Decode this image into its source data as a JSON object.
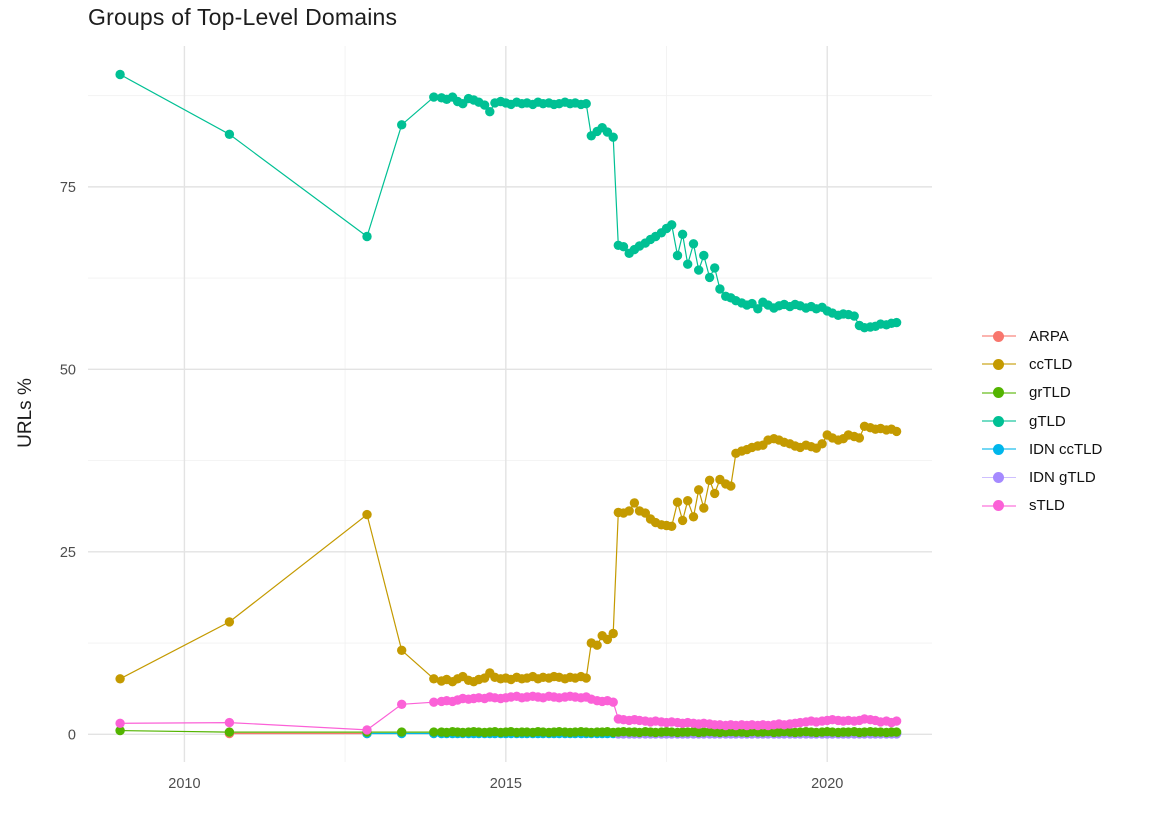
{
  "chart_data": {
    "type": "line",
    "title": "Groups of Top-Level Domains",
    "ylabel": "URLs %",
    "xlabel": "",
    "legend_position": "right",
    "grid": true,
    "axis": {
      "xlim": [
        2008.5,
        2021.63
      ],
      "ylim": [
        -3.8,
        94.3
      ],
      "x_ticks": [
        2010,
        2015,
        2020
      ],
      "x_minor_ticks": [
        2012.5,
        2017.5
      ],
      "y_ticks": [
        0,
        25,
        50,
        75
      ],
      "y_minor_ticks": [
        12.5,
        37.5,
        62.5,
        87.5
      ]
    },
    "colors": {
      "grid_major": "#e3e3e3",
      "grid_minor": "#f2f2f2",
      "tick_text": "#4d4d4d",
      "title_text": "#1d1d1d"
    },
    "x_monthly": [
      2014,
      2014.08,
      2014.17,
      2014.25,
      2014.33,
      2014.42,
      2014.5,
      2014.58,
      2014.67,
      2014.75,
      2014.83,
      2014.92,
      2015,
      2015.08,
      2015.17,
      2015.25,
      2015.33,
      2015.42,
      2015.5,
      2015.58,
      2015.67,
      2015.75,
      2015.83,
      2015.92,
      2016,
      2016.08,
      2016.17,
      2016.25,
      2016.33,
      2016.42,
      2016.5,
      2016.58,
      2016.67,
      2016.75,
      2016.83,
      2016.92,
      2017,
      2017.08,
      2017.17,
      2017.25,
      2017.33,
      2017.42,
      2017.5,
      2017.58,
      2017.67,
      2017.75,
      2017.83,
      2017.92,
      2018,
      2018.08,
      2018.17,
      2018.25,
      2018.33,
      2018.42,
      2018.5,
      2018.58,
      2018.67,
      2018.75,
      2018.83,
      2018.92,
      2019,
      2019.08,
      2019.17,
      2019.25,
      2019.33,
      2019.42,
      2019.5,
      2019.58,
      2019.67,
      2019.75,
      2019.83,
      2019.92,
      2020,
      2020.08,
      2020.17,
      2020.25,
      2020.33,
      2020.42,
      2020.5,
      2020.58,
      2020.67,
      2020.75,
      2020.83,
      2020.92,
      2021,
      2021.08
    ],
    "series": [
      {
        "name": "ARPA",
        "color": "#F8766D",
        "z": 1,
        "x_pre": [
          2010.7,
          2012.84
        ],
        "y_pre": [
          0.1,
          0.1
        ],
        "monthly_start": 0,
        "y_monthly": []
      },
      {
        "name": "ccTLD",
        "color": "#C49A00",
        "z": 4,
        "x_pre": [
          2009.0,
          2010.7,
          2012.84,
          2013.38,
          2013.88
        ],
        "y_pre": [
          7.6,
          15.4,
          30.1,
          11.5,
          7.6
        ],
        "monthly_start": 0,
        "y_monthly": [
          7.3,
          7.5,
          7.2,
          7.6,
          7.9,
          7.4,
          7.2,
          7.5,
          7.7,
          8.4,
          7.8,
          7.6,
          7.7,
          7.5,
          7.8,
          7.6,
          7.7,
          7.9,
          7.6,
          7.8,
          7.7,
          7.9,
          7.8,
          7.6,
          7.8,
          7.7,
          7.9,
          7.7,
          12.5,
          12.2,
          13.5,
          13.0,
          13.8,
          30.4,
          30.3,
          30.6,
          31.7,
          30.6,
          30.3,
          29.5,
          29.0,
          28.7,
          28.6,
          28.5,
          31.8,
          29.3,
          32.0,
          29.8,
          33.5,
          31.0,
          34.8,
          33.0,
          34.9,
          34.3,
          34.0,
          38.5,
          38.8,
          39.0,
          39.3,
          39.5,
          39.6,
          40.3,
          40.5,
          40.3,
          40.0,
          39.8,
          39.5,
          39.3,
          39.6,
          39.4,
          39.2,
          39.8,
          41.0,
          40.6,
          40.3,
          40.5,
          41.0,
          40.8,
          40.6,
          42.2,
          42.0,
          41.8,
          41.9,
          41.7,
          41.8,
          41.5
        ]
      },
      {
        "name": "grTLD",
        "color": "#53B400",
        "z": 6,
        "x_pre": [
          2009.0,
          2010.7,
          2012.84,
          2013.38,
          2013.88
        ],
        "y_pre": [
          0.5,
          0.3,
          0.3,
          0.3,
          0.3
        ],
        "monthly_start": 0,
        "y_monthly": [
          0.3,
          0.25,
          0.35,
          0.3,
          0.25,
          0.3,
          0.35,
          0.3,
          0.25,
          0.3,
          0.35,
          0.25,
          0.3,
          0.35,
          0.25,
          0.3,
          0.3,
          0.25,
          0.35,
          0.3,
          0.25,
          0.3,
          0.35,
          0.3,
          0.25,
          0.3,
          0.35,
          0.3,
          0.25,
          0.3,
          0.3,
          0.35,
          0.25,
          0.3,
          0.35,
          0.3,
          0.3,
          0.25,
          0.35,
          0.3,
          0.25,
          0.3,
          0.35,
          0.3,
          0.25,
          0.3,
          0.3,
          0.35,
          0.25,
          0.3,
          0.35,
          0.3,
          0.25,
          0.3,
          0.35,
          0.3,
          0.3,
          0.25,
          0.35,
          0.3,
          0.3,
          0.35,
          0.25,
          0.3,
          0.35,
          0.3,
          0.25,
          0.3,
          0.35,
          0.3,
          0.25,
          0.3,
          0.35,
          0.3,
          0.25,
          0.3,
          0.3,
          0.35,
          0.25,
          0.3,
          0.35,
          0.3,
          0.3,
          0.25,
          0.3,
          0.3
        ]
      },
      {
        "name": "gTLD",
        "color": "#00C094",
        "z": 5,
        "x_pre": [
          2009.0,
          2010.7,
          2012.84,
          2013.38,
          2013.88
        ],
        "y_pre": [
          90.4,
          82.2,
          68.2,
          83.5,
          87.3
        ],
        "monthly_start": 0,
        "y_monthly": [
          87.2,
          87.0,
          87.3,
          86.7,
          86.4,
          87.1,
          86.9,
          86.6,
          86.2,
          85.3,
          86.5,
          86.7,
          86.5,
          86.3,
          86.6,
          86.4,
          86.5,
          86.3,
          86.6,
          86.4,
          86.5,
          86.3,
          86.4,
          86.6,
          86.4,
          86.5,
          86.3,
          86.4,
          82.0,
          82.6,
          83.1,
          82.5,
          81.8,
          67.0,
          66.8,
          65.9,
          66.4,
          66.9,
          67.3,
          67.8,
          68.2,
          68.7,
          69.3,
          69.8,
          65.6,
          68.5,
          64.4,
          67.2,
          63.6,
          65.6,
          62.6,
          63.9,
          61.0,
          60.0,
          59.8,
          59.4,
          59.1,
          58.8,
          59.0,
          58.3,
          59.2,
          58.8,
          58.4,
          58.7,
          58.9,
          58.6,
          58.9,
          58.7,
          58.4,
          58.6,
          58.3,
          58.5,
          58.0,
          57.7,
          57.4,
          57.6,
          57.5,
          57.3,
          56.0,
          55.7,
          55.8,
          55.9,
          56.2,
          56.1,
          56.3,
          56.4
        ]
      },
      {
        "name": "IDN ccTLD",
        "color": "#00B6EB",
        "z": 2,
        "x_pre": [
          2012.84,
          2013.38,
          2013.88
        ],
        "y_pre": [
          0.1,
          0.1,
          0.1
        ],
        "monthly_start": 0,
        "y_monthly": [
          0.1,
          0.1,
          0.1,
          0.1,
          0.1,
          0.1,
          0.1,
          0.1,
          0.1,
          0.1,
          0.1,
          0.1,
          0.1,
          0.1,
          0.1,
          0.1,
          0.1,
          0.1,
          0.1,
          0.1,
          0.1,
          0.1,
          0.1,
          0.1,
          0.1,
          0.1,
          0.1,
          0.1,
          0.1,
          0.1,
          0.1,
          0.1,
          0.1,
          0.1,
          0.1,
          0.1,
          0.1,
          0.1,
          0.1,
          0.1,
          0.1,
          0.1,
          0.1,
          0.1,
          0.1,
          0.1,
          0.1,
          0.1,
          0.1,
          0.1,
          0.1,
          0.1,
          0.1,
          0.1,
          0.1,
          0.1,
          0.1,
          0.1,
          0.1,
          0.1,
          0.1,
          0.1,
          0.1,
          0.1,
          0.1,
          0.1,
          0.1,
          0.1,
          0.1,
          0.1,
          0.1,
          0.1,
          0.1,
          0.1,
          0.1,
          0.1,
          0.1,
          0.1,
          0.1,
          0.1,
          0.1,
          0.1,
          0.1,
          0.1,
          0.1,
          0.1
        ]
      },
      {
        "name": "IDN gTLD",
        "color": "#A58AFF",
        "z": 3,
        "x_pre": [],
        "y_pre": [],
        "monthly_start": 33,
        "y_monthly": [
          0.05,
          0.05,
          0.05,
          0.05,
          0.05,
          0.05,
          0.05,
          0.05,
          0.05,
          0.05,
          0.05,
          0.05,
          0.05,
          0.05,
          0.05,
          0.05,
          0.05,
          0.05,
          0.05,
          0.05,
          0.05,
          0.05,
          0.05,
          0.05,
          0.05,
          0.05,
          0.05,
          0.05,
          0.05,
          0.05,
          0.05,
          0.05,
          0.05,
          0.05,
          0.05,
          0.05,
          0.05,
          0.05,
          0.05,
          0.05,
          0.05,
          0.05,
          0.05,
          0.05,
          0.05,
          0.05,
          0.05,
          0.05,
          0.05,
          0.05,
          0.05,
          0.05,
          0.05
        ]
      },
      {
        "name": "sTLD",
        "color": "#FB61D7",
        "z": 7,
        "x_pre": [
          2009.0,
          2010.7,
          2012.84,
          2013.38,
          2013.88
        ],
        "y_pre": [
          1.5,
          1.6,
          0.6,
          4.1,
          4.4
        ],
        "monthly_start": 0,
        "y_monthly": [
          4.5,
          4.6,
          4.5,
          4.7,
          4.9,
          4.8,
          4.9,
          5.0,
          4.9,
          5.1,
          5.0,
          4.9,
          5.0,
          5.1,
          5.2,
          5.0,
          5.1,
          5.2,
          5.1,
          5.0,
          5.2,
          5.1,
          5.0,
          5.1,
          5.2,
          5.1,
          5.0,
          5.1,
          4.8,
          4.6,
          4.5,
          4.6,
          4.4,
          2.1,
          2.0,
          1.9,
          2.0,
          1.9,
          1.8,
          1.7,
          1.8,
          1.7,
          1.6,
          1.7,
          1.6,
          1.5,
          1.6,
          1.5,
          1.4,
          1.5,
          1.4,
          1.3,
          1.3,
          1.2,
          1.3,
          1.2,
          1.3,
          1.2,
          1.3,
          1.2,
          1.3,
          1.2,
          1.3,
          1.4,
          1.3,
          1.4,
          1.5,
          1.6,
          1.7,
          1.8,
          1.7,
          1.8,
          1.9,
          2.0,
          1.9,
          1.8,
          1.9,
          1.8,
          1.9,
          2.1,
          2.0,
          1.9,
          1.7,
          1.8,
          1.6,
          1.8
        ]
      }
    ]
  }
}
